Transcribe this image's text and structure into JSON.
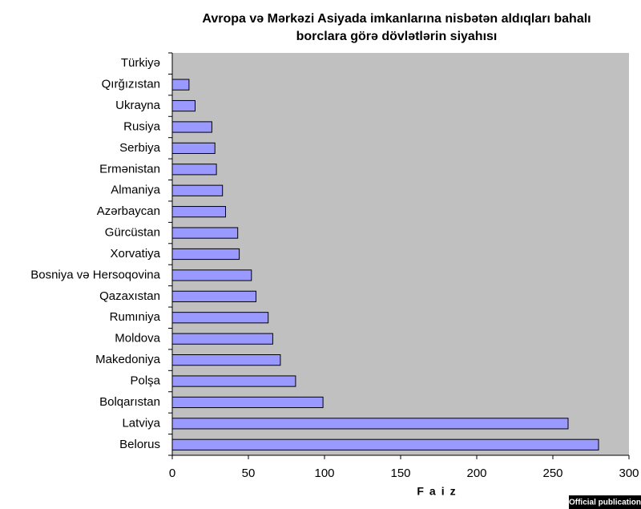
{
  "chart_data": {
    "type": "barh",
    "title": [
      "Avropa və Mərkəzi Asiyada imkanlarına nisbətən aldıqları bahalı",
      "borclara görə dövlətlərin siyahısı"
    ],
    "x_label": "Faiz",
    "categories": [
      "Türkiyə",
      "Qırğızıstan",
      "Ukrayna",
      "Rusiya",
      "Serbiya",
      "Ermənistan",
      "Almaniya",
      "Azərbaycan",
      "Gürcüstan",
      "Xorvatiya",
      "Bosniya və Hersoqovina",
      "Qazaxıstan",
      "Rumıniya",
      "Moldova",
      "Makedoniya",
      "Polşa",
      "Bolqarıstan",
      "Latviya",
      "Belorus"
    ],
    "values": [
      0,
      11,
      15,
      26,
      28,
      29,
      33,
      35,
      43,
      44,
      52,
      55,
      63,
      66,
      71,
      81,
      99,
      260,
      280
    ],
    "color": "#9999ff",
    "xlim": [
      0,
      300
    ],
    "xticks": [
      0,
      50,
      100,
      150,
      200,
      250,
      300
    ],
    "grid": false
  },
  "badge": "Official publication"
}
